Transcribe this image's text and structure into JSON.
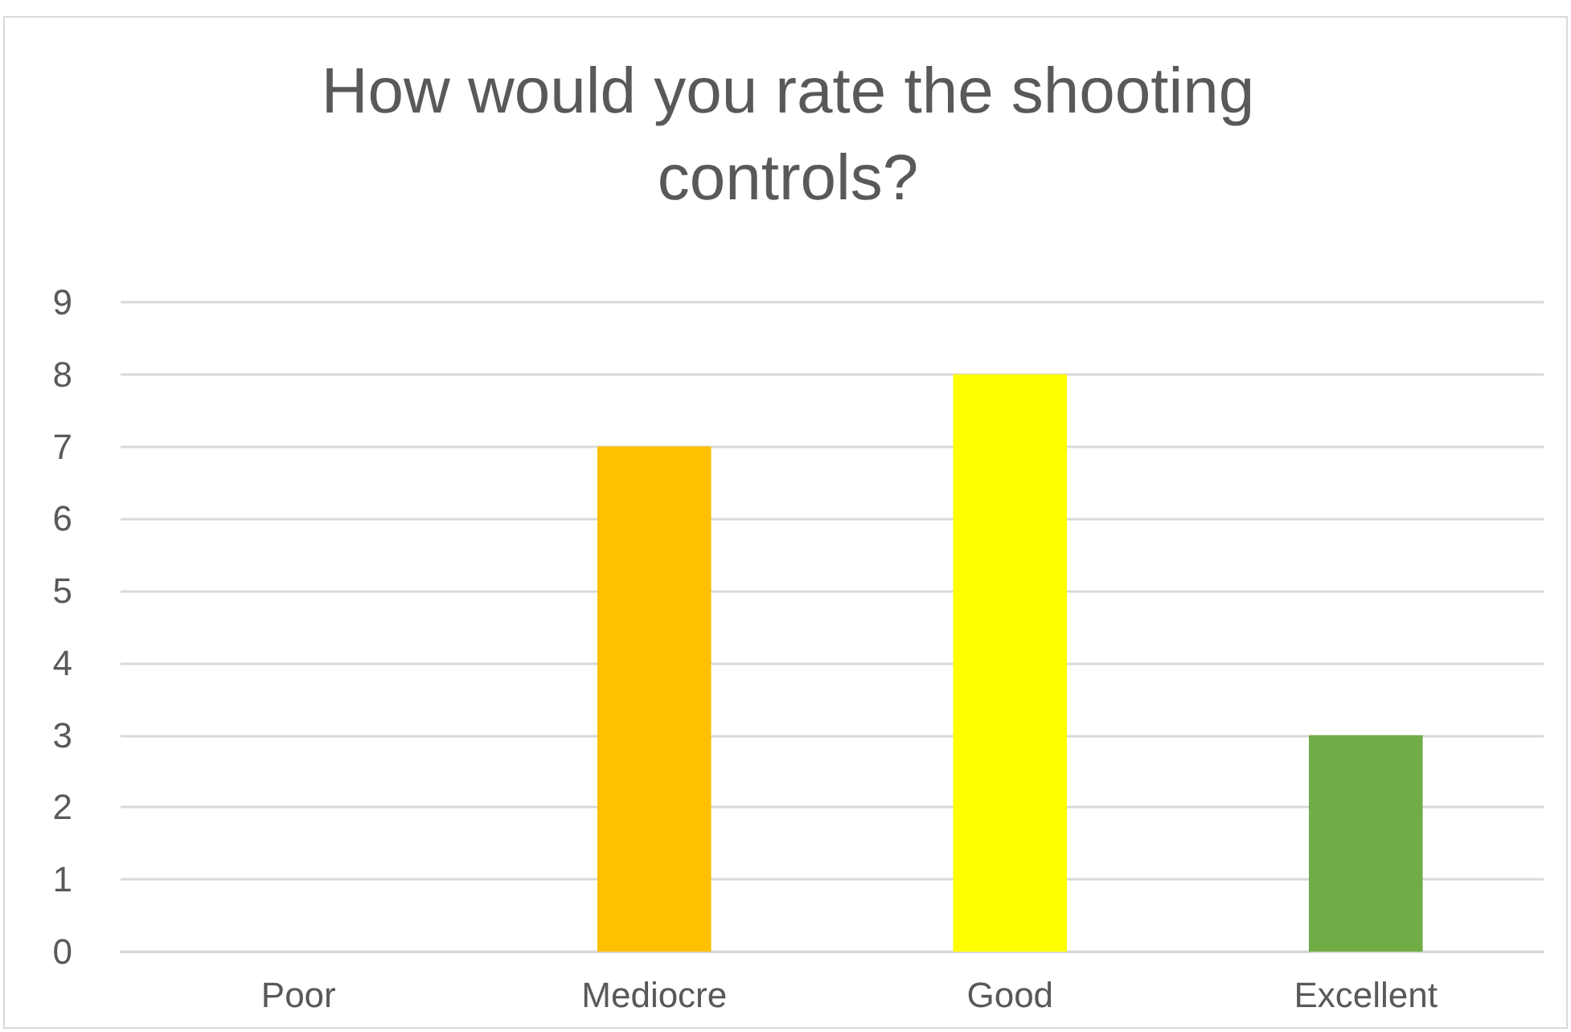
{
  "chart_data": {
    "type": "bar",
    "title": "How would you rate the shooting controls?",
    "categories": [
      "Poor",
      "Mediocre",
      "Good",
      "Excellent"
    ],
    "values": [
      0,
      7,
      8,
      3
    ],
    "colors": [
      "#c00000",
      "#ffc000",
      "#ffff00",
      "#70ad47"
    ],
    "ylim": [
      0,
      9
    ],
    "yticks": [
      0,
      1,
      2,
      3,
      4,
      5,
      6,
      7,
      8,
      9
    ],
    "grid": "y"
  }
}
